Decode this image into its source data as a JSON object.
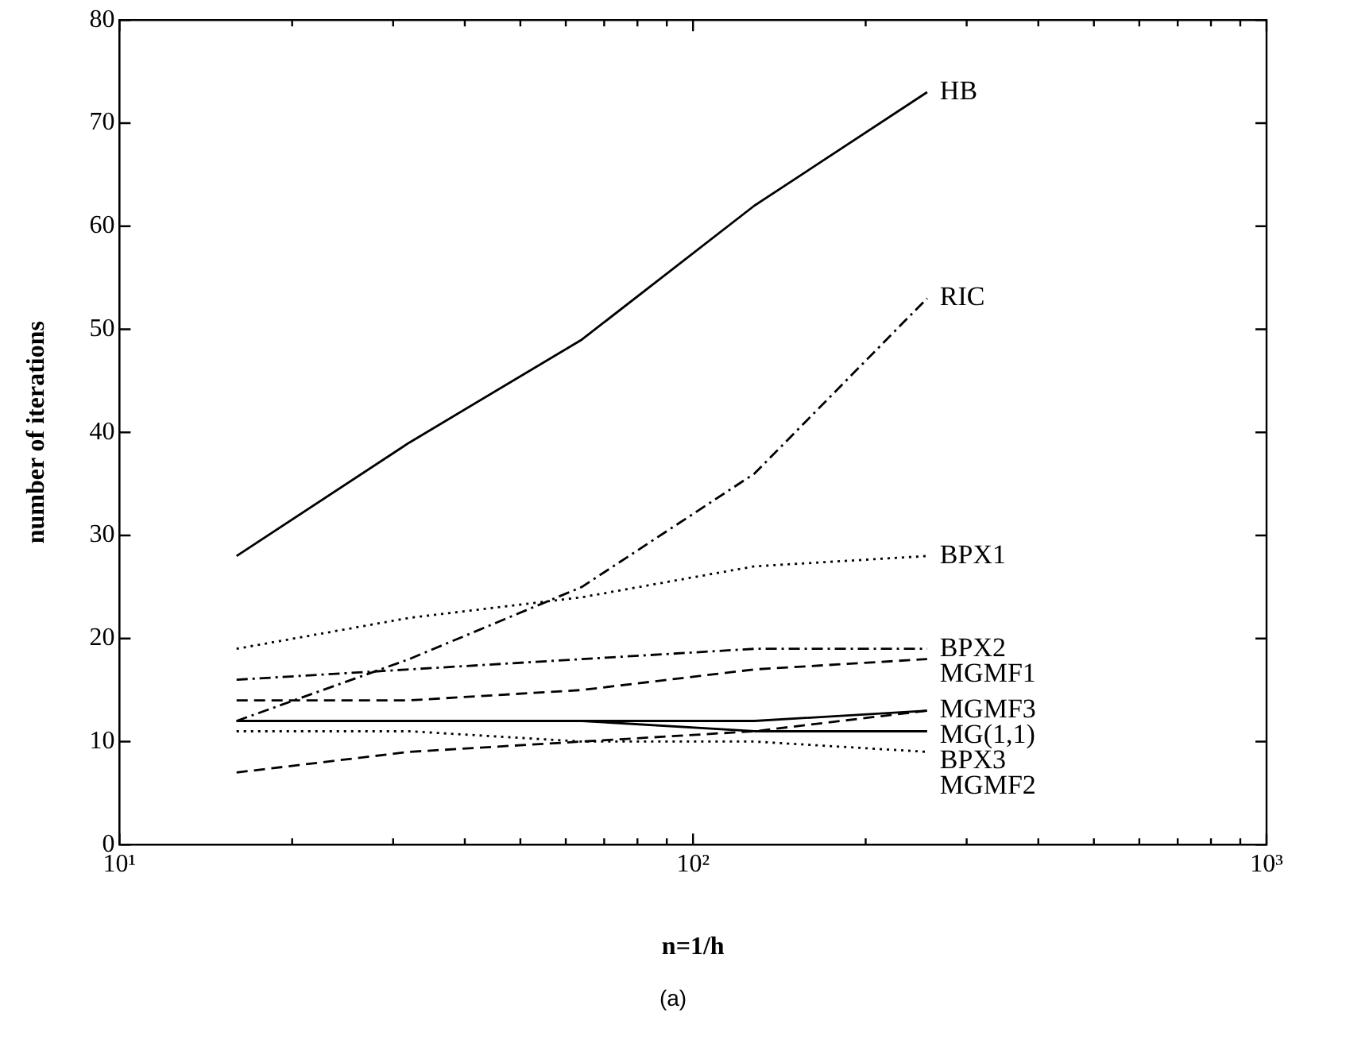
{
  "chart_data": {
    "type": "line",
    "xlabel": "n=1/h",
    "ylabel": "number of iterations",
    "annotations": [
      "(a)"
    ],
    "x": [
      16,
      32,
      64,
      128,
      256
    ],
    "xlim": [
      10,
      1000
    ],
    "xticks": [
      {
        "value": 10,
        "label": "10¹"
      },
      {
        "value": 20,
        "label": null
      },
      {
        "value": 30,
        "label": null
      },
      {
        "value": 40,
        "label": null
      },
      {
        "value": 50,
        "label": null
      },
      {
        "value": 60,
        "label": null
      },
      {
        "value": 70,
        "label": null
      },
      {
        "value": 80,
        "label": null
      },
      {
        "value": 90,
        "label": null
      },
      {
        "value": 100,
        "label": "10²"
      },
      {
        "value": 200,
        "label": null
      },
      {
        "value": 300,
        "label": null
      },
      {
        "value": 400,
        "label": null
      },
      {
        "value": 500,
        "label": null
      },
      {
        "value": 600,
        "label": null
      },
      {
        "value": 700,
        "label": null
      },
      {
        "value": 800,
        "label": null
      },
      {
        "value": 900,
        "label": null
      },
      {
        "value": 1000,
        "label": "10³"
      }
    ],
    "ylim": [
      0,
      80
    ],
    "yticks": [
      0,
      10,
      20,
      30,
      40,
      50,
      60,
      70,
      80
    ],
    "log": "x",
    "grid": false,
    "legend": false,
    "marker": "none",
    "series": [
      {
        "name": "HB",
        "color": "#000000",
        "line_style": "solid",
        "values": [
          28,
          39,
          49,
          62,
          73
        ]
      },
      {
        "name": "RIC",
        "color": "#000000",
        "line_style": "dashdot",
        "values": [
          12,
          18,
          25,
          36,
          53
        ]
      },
      {
        "name": "BPX1",
        "color": "#000000",
        "line_style": "dotted",
        "values": [
          19,
          22,
          24,
          27,
          28
        ]
      },
      {
        "name": "BPX2",
        "color": "#000000",
        "line_style": "dashdot",
        "values": [
          16,
          17,
          18,
          19,
          19
        ]
      },
      {
        "name": "MGMF1",
        "color": "#000000",
        "line_style": "dashed",
        "values": [
          14,
          14,
          15,
          17,
          18
        ]
      },
      {
        "name": "MGMF3",
        "color": "#000000",
        "line_style": "dashed",
        "values": [
          7,
          9,
          10,
          11,
          13
        ]
      },
      {
        "name": "MG(1,1)",
        "color": "#000000",
        "line_style": "solid",
        "values": [
          12,
          12,
          12,
          12,
          13
        ]
      },
      {
        "name": "BPX3",
        "color": "#000000",
        "line_style": "solid",
        "values": [
          12,
          12,
          12,
          11,
          11
        ]
      },
      {
        "name": "MGMF2",
        "color": "#000000",
        "line_style": "dotted",
        "values": [
          11,
          11,
          10,
          10,
          9
        ]
      }
    ]
  }
}
